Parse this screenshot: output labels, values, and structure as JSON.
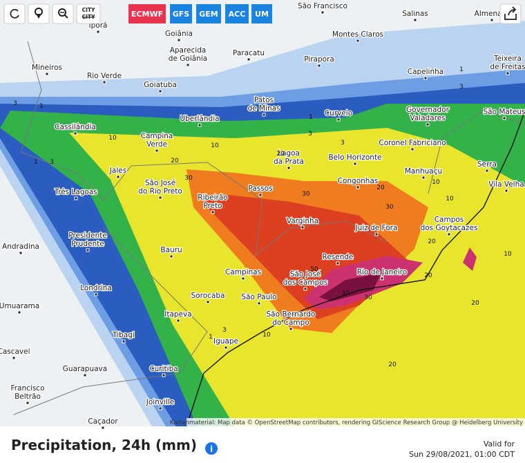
{
  "toolbar": {
    "city_button": "CITY",
    "city_button_strike": "CITY"
  },
  "models": [
    "ECMWF",
    "GFS",
    "GEM",
    "ACC",
    "UM"
  ],
  "active_model_index": 0,
  "map": {
    "cities": [
      {
        "lines": [
          "Iporá"
        ]
      },
      {
        "lines": [
          "Goiânia"
        ]
      },
      {
        "lines": [
          "Aparecida",
          "de Goiânia"
        ]
      },
      {
        "lines": [
          "Paracatu"
        ]
      },
      {
        "lines": [
          "São Francisco"
        ]
      },
      {
        "lines": [
          "Salinas"
        ]
      },
      {
        "lines": [
          "Almenara"
        ]
      },
      {
        "lines": [
          "Montes Claros"
        ]
      },
      {
        "lines": [
          "Pirapora"
        ]
      },
      {
        "lines": [
          "Mineiros"
        ]
      },
      {
        "lines": [
          "Rio Verde"
        ]
      },
      {
        "lines": [
          "Goiatuba"
        ]
      },
      {
        "lines": [
          "Capelinha"
        ]
      },
      {
        "lines": [
          "Teixeira",
          "de Freitas"
        ]
      },
      {
        "lines": [
          "Patos",
          "de Minas"
        ]
      },
      {
        "lines": [
          "Governador",
          "Valadares"
        ]
      },
      {
        "lines": [
          "São Mateus"
        ]
      },
      {
        "lines": [
          "Uberlândia"
        ]
      },
      {
        "lines": [
          "Curvelo"
        ]
      },
      {
        "lines": [
          "Cassilândia"
        ]
      },
      {
        "lines": [
          "Campina",
          "Verde"
        ]
      },
      {
        "lines": [
          "Coronel Fabriciano"
        ]
      },
      {
        "lines": [
          "Lagoa",
          "da Prata"
        ]
      },
      {
        "lines": [
          "Belo Horizonte"
        ]
      },
      {
        "lines": [
          "Serra"
        ]
      },
      {
        "lines": [
          "Jales"
        ]
      },
      {
        "lines": [
          "Manhuaçu"
        ]
      },
      {
        "lines": [
          "São José",
          "do Rio Preto"
        ]
      },
      {
        "lines": [
          "Congonhas"
        ]
      },
      {
        "lines": [
          "Vila Velha"
        ]
      },
      {
        "lines": [
          "Três Lagoas"
        ]
      },
      {
        "lines": [
          "Passos"
        ]
      },
      {
        "lines": [
          "Ribeirão",
          "Preto"
        ]
      },
      {
        "lines": [
          "Varginha"
        ]
      },
      {
        "lines": [
          "Juiz de Fora"
        ]
      },
      {
        "lines": [
          "Campos",
          "dos Goytacazes"
        ]
      },
      {
        "lines": [
          "Presidente",
          "Prudente"
        ]
      },
      {
        "lines": [
          "Andradina"
        ]
      },
      {
        "lines": [
          "Bauru"
        ]
      },
      {
        "lines": [
          "Resende"
        ]
      },
      {
        "lines": [
          "Campinas"
        ]
      },
      {
        "lines": [
          "São José",
          "dos Campos"
        ]
      },
      {
        "lines": [
          "Rio de Janeiro"
        ]
      },
      {
        "lines": [
          "Londrina"
        ]
      },
      {
        "lines": [
          "Sorocaba"
        ]
      },
      {
        "lines": [
          "São Paulo"
        ]
      },
      {
        "lines": [
          "Umuarama"
        ]
      },
      {
        "lines": [
          "Itapeva"
        ]
      },
      {
        "lines": [
          "São Bernardo",
          "do Campo"
        ]
      },
      {
        "lines": [
          "Tibagi"
        ]
      },
      {
        "lines": [
          "Iguape"
        ]
      },
      {
        "lines": [
          "Cascavel"
        ]
      },
      {
        "lines": [
          "Guarapuava"
        ]
      },
      {
        "lines": [
          "Curitiba"
        ]
      },
      {
        "lines": [
          "Francisco",
          "Beltrão"
        ]
      },
      {
        "lines": [
          "Joinville"
        ]
      },
      {
        "lines": [
          "Caçador"
        ]
      }
    ],
    "contour_labels": [
      "3",
      "1",
      "1",
      "3",
      "10",
      "20",
      "30",
      "10",
      "1",
      "3",
      "3",
      "20",
      "30",
      "20",
      "30",
      "10",
      "10",
      "20",
      "10",
      "50",
      "30",
      "30",
      "20",
      "20",
      "20",
      "10",
      "3",
      "1",
      "1",
      "3"
    ],
    "attribution": "Kartenmaterial: Map data © OpenStreetMap contributors, rendering GIScience Research Group @ Heidelberg University"
  },
  "footer": {
    "title": "Precipitation, 24h (mm)",
    "info_icon": "i",
    "valid_label": "Valid for",
    "valid_time": "Sun 29/08/2021, 01:00 CDT"
  }
}
